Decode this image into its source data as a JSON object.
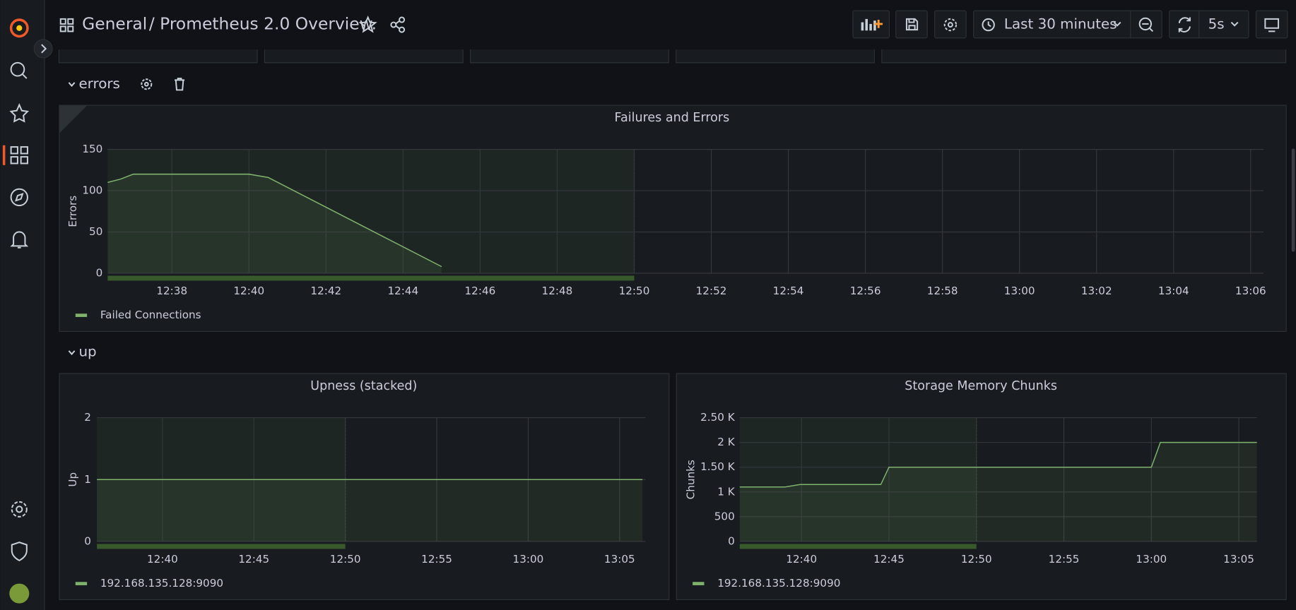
{
  "header": {
    "breadcrumb": "General",
    "title": "/ Prometheus 2.0 Overview.",
    "time_range": "Last 30 minutes",
    "refresh": "5s"
  },
  "rows": [
    "errors",
    "up"
  ],
  "chart_data": [
    {
      "type": "line",
      "title": "Failures and Errors",
      "y_label": "Errors",
      "x": [
        "12:36:20",
        "12:36:40",
        "12:37:00",
        "12:40:00",
        "12:40:30",
        "12:45:00"
      ],
      "series": [
        {
          "name": "Failed Connections",
          "color": "#7eb26d",
          "values": [
            110,
            114,
            120,
            120,
            116,
            8
          ]
        }
      ],
      "xlim": [
        "12:36:20",
        "13:06:20"
      ],
      "ylim": [
        0,
        150
      ],
      "xticks": [
        "12:38",
        "12:40",
        "12:42",
        "12:44",
        "12:46",
        "12:48",
        "12:50",
        "12:52",
        "12:54",
        "12:56",
        "12:58",
        "13:00",
        "13:02",
        "13:04",
        "13:06"
      ],
      "yticks": [
        0,
        50,
        100,
        150
      ],
      "grid": true,
      "region_end": "12:50",
      "legend": "bottom"
    },
    {
      "type": "line",
      "title": "Upness (stacked)",
      "y_label": "Up",
      "x": [
        "12:36:25",
        "13:06:15"
      ],
      "series": [
        {
          "name": "192.168.135.128:9090",
          "color": "#7eb26d",
          "values": [
            1,
            1
          ]
        }
      ],
      "xlim": [
        "12:36:25",
        "13:06:25"
      ],
      "ylim": [
        0,
        2
      ],
      "xticks": [
        "12:40",
        "12:45",
        "12:50",
        "12:55",
        "13:00",
        "13:05"
      ],
      "yticks": [
        0,
        1,
        2
      ],
      "grid": true,
      "region_end": "12:50",
      "legend": "bottom"
    },
    {
      "type": "line",
      "title": "Storage Memory Chunks",
      "y_label": "Chunks",
      "x": [
        "12:36:28",
        "12:39:04",
        "12:39:55",
        "12:44:32",
        "12:45:00",
        "13:00:00",
        "13:00:31",
        "13:06:02"
      ],
      "series": [
        {
          "name": "192.168.135.128:9090",
          "color": "#7eb26d",
          "values": [
            1100,
            1100,
            1150,
            1150,
            1500,
            1500,
            2000,
            2000
          ]
        }
      ],
      "xlim": [
        "12:36:28",
        "13:06:02"
      ],
      "ylim": [
        0,
        2500
      ],
      "xticks": [
        "12:40",
        "12:45",
        "12:50",
        "12:55",
        "13:00",
        "13:05"
      ],
      "yticks": [
        0,
        500,
        {
          "value": 1000,
          "label": "1 K"
        },
        {
          "value": 1500,
          "label": "1.50 K"
        },
        {
          "value": 2000,
          "label": "2 K"
        },
        {
          "value": 2500,
          "label": "2.50 K"
        }
      ],
      "grid": true,
      "region_end": "12:50",
      "legend": "bottom"
    }
  ]
}
